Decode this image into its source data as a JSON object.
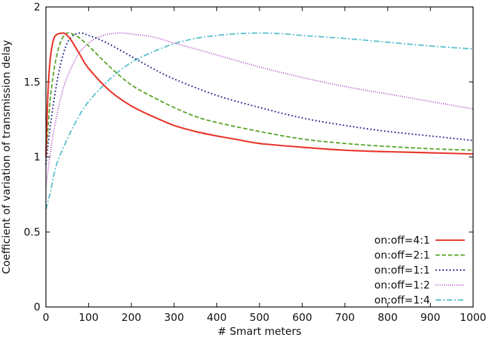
{
  "chart_data": {
    "type": "line",
    "title": "",
    "xlabel": "# Smart meters",
    "ylabel": "Coefficient of variation of transmission delay",
    "xlim": [
      0,
      1000
    ],
    "ylim": [
      0,
      2
    ],
    "xticks": [
      0,
      100,
      200,
      300,
      400,
      500,
      600,
      700,
      800,
      900,
      1000
    ],
    "yticks": [
      0,
      0.5,
      1,
      1.5,
      2
    ],
    "ytick_labels": [
      "0",
      "0.5",
      "1",
      "1.5",
      "2"
    ],
    "grid": false,
    "legend_position": "bottom-right",
    "series": [
      {
        "name": "on:off=4:1",
        "color": "#e8352a",
        "dash": "solid",
        "x": [
          0,
          3,
          6,
          10,
          15,
          20,
          25,
          30,
          35,
          40,
          45,
          50,
          60,
          80,
          100,
          150,
          200,
          250,
          300,
          350,
          400,
          450,
          500,
          600,
          700,
          800,
          900,
          1000
        ],
        "y": [
          1.0,
          1.3,
          1.5,
          1.65,
          1.75,
          1.8,
          1.815,
          1.822,
          1.825,
          1.826,
          1.822,
          1.81,
          1.775,
          1.68,
          1.59,
          1.44,
          1.34,
          1.27,
          1.21,
          1.17,
          1.14,
          1.115,
          1.09,
          1.065,
          1.045,
          1.035,
          1.028,
          1.02
        ]
      },
      {
        "name": "on:off=2:1",
        "color": "#5fa832",
        "dash": "6,3",
        "x": [
          0,
          5,
          10,
          15,
          20,
          30,
          40,
          50,
          60,
          70,
          80,
          100,
          150,
          200,
          250,
          300,
          350,
          400,
          500,
          600,
          700,
          800,
          900,
          1000
        ],
        "y": [
          1.0,
          1.2,
          1.38,
          1.5,
          1.6,
          1.73,
          1.8,
          1.826,
          1.822,
          1.81,
          1.79,
          1.74,
          1.6,
          1.48,
          1.4,
          1.33,
          1.27,
          1.23,
          1.17,
          1.12,
          1.09,
          1.07,
          1.055,
          1.045
        ]
      },
      {
        "name": "on:off=1:1",
        "color": "#2a2f8e",
        "dash": "2,3",
        "x": [
          0,
          5,
          10,
          20,
          30,
          40,
          50,
          60,
          70,
          80,
          90,
          100,
          120,
          150,
          200,
          250,
          300,
          400,
          500,
          600,
          700,
          800,
          900,
          1000
        ],
        "y": [
          0.95,
          1.08,
          1.2,
          1.4,
          1.56,
          1.68,
          1.76,
          1.8,
          1.82,
          1.826,
          1.822,
          1.81,
          1.79,
          1.75,
          1.67,
          1.59,
          1.52,
          1.41,
          1.33,
          1.26,
          1.21,
          1.17,
          1.14,
          1.11
        ]
      },
      {
        "name": "on:off=1:2",
        "color": "#b34ac8",
        "dash": "1,2",
        "x": [
          0,
          10,
          20,
          40,
          60,
          80,
          100,
          120,
          140,
          160,
          180,
          200,
          250,
          300,
          400,
          500,
          600,
          700,
          800,
          900,
          1000
        ],
        "y": [
          0.8,
          1.02,
          1.2,
          1.45,
          1.6,
          1.7,
          1.76,
          1.795,
          1.815,
          1.825,
          1.826,
          1.82,
          1.8,
          1.76,
          1.68,
          1.6,
          1.53,
          1.47,
          1.42,
          1.37,
          1.32
        ]
      },
      {
        "name": "on:off=1:4",
        "color": "#5fc3cf",
        "dash": "8,3,2,3",
        "x": [
          0,
          10,
          25,
          50,
          75,
          100,
          150,
          200,
          250,
          300,
          350,
          400,
          450,
          500,
          550,
          600,
          700,
          800,
          900,
          1000
        ],
        "y": [
          0.65,
          0.76,
          0.95,
          1.12,
          1.26,
          1.37,
          1.52,
          1.63,
          1.7,
          1.755,
          1.79,
          1.81,
          1.822,
          1.826,
          1.822,
          1.81,
          1.79,
          1.765,
          1.74,
          1.72
        ]
      }
    ]
  }
}
